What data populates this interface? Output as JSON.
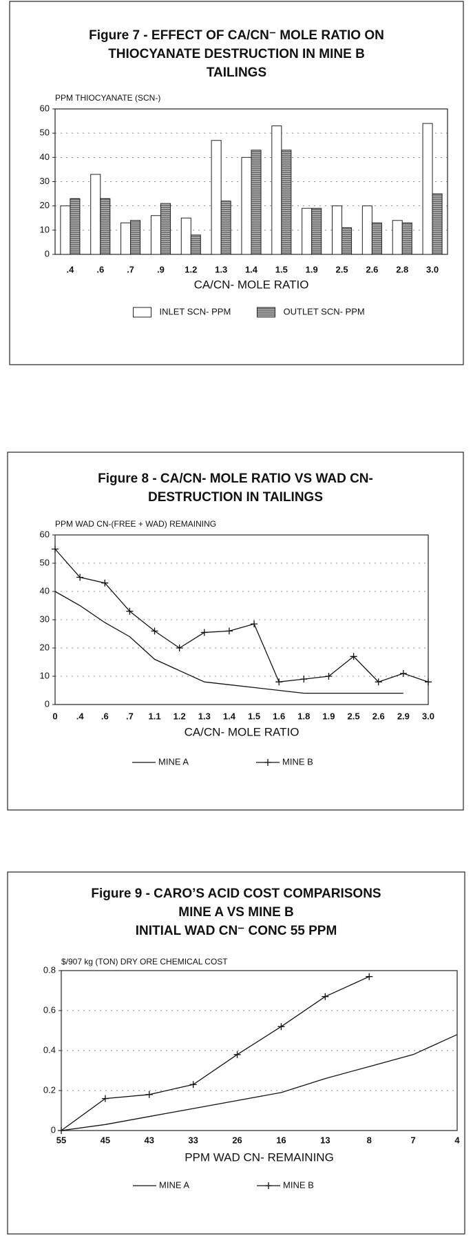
{
  "chart_data": [
    {
      "type": "bar",
      "title": [
        "Figure 7 - EFFECT OF CA/CN⁻ MOLE RATIO ON",
        "THIOCYANATE DESTRUCTION IN MINE B",
        "TAILINGS"
      ],
      "y_label": "PPM THIOCYANATE (SCN-)",
      "x_label": "CA/CN- MOLE RATIO",
      "categories": [
        ".4",
        ".6",
        ".7",
        ".9",
        "1.2",
        "1.3",
        "1.4",
        "1.5",
        "1.9",
        "2.5",
        "2.6",
        "2.8",
        "3.0"
      ],
      "series": [
        {
          "name": "INLET SCN- PPM",
          "color": "#ffffff",
          "values": [
            20,
            33,
            13,
            16,
            15,
            47,
            40,
            53,
            19,
            20,
            20,
            14,
            54
          ]
        },
        {
          "name": "OUTLET SCN- PPM",
          "color": "#7a7a7a",
          "values": [
            23,
            23,
            14,
            21,
            8,
            22,
            43,
            43,
            19,
            11,
            13,
            13,
            25
          ]
        }
      ],
      "ylim": [
        0,
        60
      ],
      "yticks": [
        0,
        10,
        20,
        30,
        40,
        50,
        60
      ],
      "grid": true,
      "legend": "bottom"
    },
    {
      "type": "line",
      "title": [
        "Figure 8 - CA/CN- MOLE RATIO VS WAD CN-",
        "DESTRUCTION IN TAILINGS"
      ],
      "y_label": "PPM WAD CN-(FREE + WAD) REMAINING",
      "x_label": "CA/CN- MOLE RATIO",
      "categories": [
        "0",
        ".4",
        ".6",
        ".7",
        "1.1",
        "1.2",
        "1.3",
        "1.4",
        "1.5",
        "1.6",
        "1.8",
        "1.9",
        "2.5",
        "2.6",
        "2.9",
        "3.0"
      ],
      "series": [
        {
          "name": "MINE A",
          "color": "#111111",
          "values": [
            40,
            35,
            29,
            24,
            16,
            12,
            8,
            7,
            6,
            5,
            4,
            4,
            4,
            4,
            4,
            null
          ]
        },
        {
          "name": "MINE B",
          "color": "#111111",
          "marker": "+",
          "values": [
            55,
            45,
            43,
            33,
            26,
            20,
            25.5,
            26,
            28.5,
            8,
            9,
            10,
            17,
            8,
            11,
            8
          ]
        }
      ],
      "ylim": [
        0,
        60
      ],
      "yticks": [
        0,
        10,
        20,
        30,
        40,
        50,
        60
      ],
      "grid": true,
      "legend": "bottom"
    },
    {
      "type": "line",
      "title": [
        "Figure 9 - CARO’S ACID COST COMPARISONS",
        "MINE A VS MINE B",
        "INITIAL WAD CN⁻ CONC 55 PPM"
      ],
      "y_label": "$/907 kg (TON) DRY ORE CHEMICAL COST",
      "x_label": "PPM WAD CN- REMAINING",
      "categories": [
        "55",
        "45",
        "43",
        "33",
        "26",
        "16",
        "13",
        "8",
        "7",
        "4"
      ],
      "series": [
        {
          "name": "MINE A",
          "color": "#111111",
          "values": [
            0,
            0.03,
            0.07,
            0.11,
            0.15,
            0.19,
            0.26,
            0.32,
            0.38,
            0.48
          ]
        },
        {
          "name": "MINE B",
          "color": "#111111",
          "marker": "+",
          "values": [
            0,
            0.16,
            0.18,
            0.23,
            0.38,
            0.52,
            0.67,
            0.77,
            null,
            null
          ]
        }
      ],
      "ylim": [
        0,
        0.8
      ],
      "yticks": [
        0,
        0.2,
        0.4,
        0.6,
        0.8
      ],
      "grid": true,
      "legend": "bottom"
    }
  ]
}
